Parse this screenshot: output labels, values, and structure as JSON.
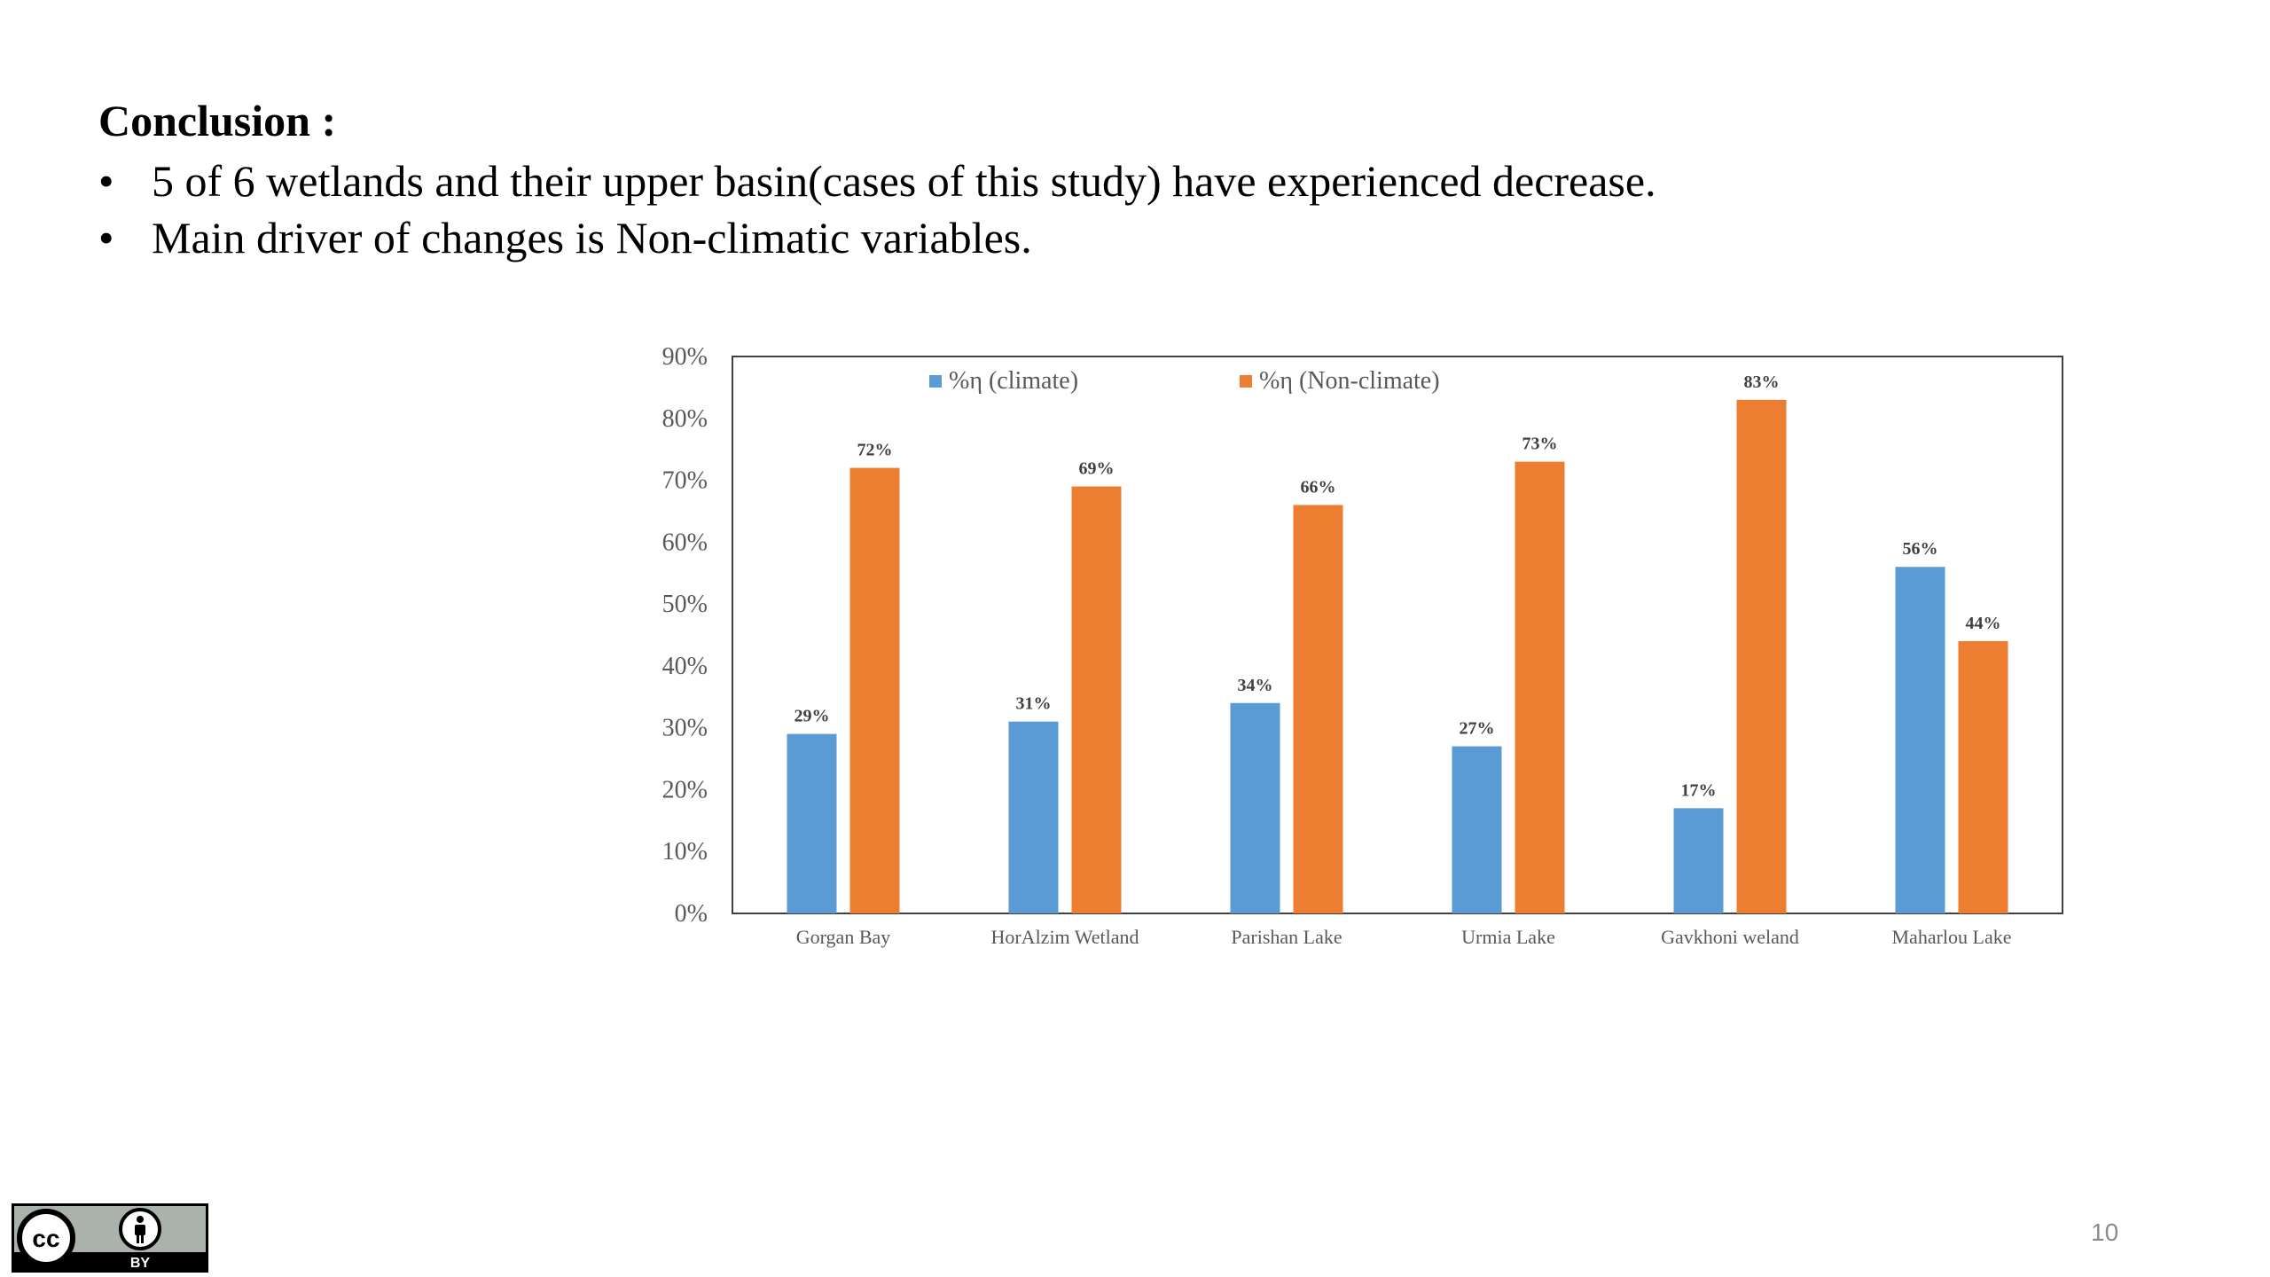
{
  "slide": {
    "title": "Conclusion :",
    "bullets": [
      "5 of 6 wetlands and their upper basin(cases of this study) have experienced decrease.",
      "Main driver of changes is Non-climatic variables."
    ],
    "bullet_glyph": "•",
    "page_number": "10"
  },
  "license": {
    "label": "BY",
    "icon": "creative-commons-by-icon",
    "cc_glyph": "cc"
  },
  "chart_data": {
    "type": "bar",
    "categories": [
      "Gorgan Bay",
      "HorAlzim Wetland",
      "Parishan Lake",
      "Urmia Lake",
      "Gavkhoni weland",
      "Maharlou Lake"
    ],
    "series": [
      {
        "name": "%η (climate)",
        "values": [
          29,
          31,
          34,
          27,
          17,
          56
        ],
        "labels": [
          "29%",
          "31%",
          "34%",
          "27%",
          "17%",
          "56%"
        ],
        "color": "#5b9bd5"
      },
      {
        "name": "%η (Non-climate)",
        "values": [
          72,
          69,
          66,
          73,
          83,
          44
        ],
        "labels": [
          "72%",
          "69%",
          "66%",
          "73%",
          "83%",
          "44%"
        ],
        "color": "#ed7d31"
      }
    ],
    "yticks": [
      "0%",
      "10%",
      "20%",
      "30%",
      "40%",
      "50%",
      "60%",
      "70%",
      "80%",
      "90%"
    ],
    "ylim": [
      0,
      90
    ],
    "xlabel": "",
    "ylabel": "",
    "legend_position": "top",
    "grid": false
  }
}
